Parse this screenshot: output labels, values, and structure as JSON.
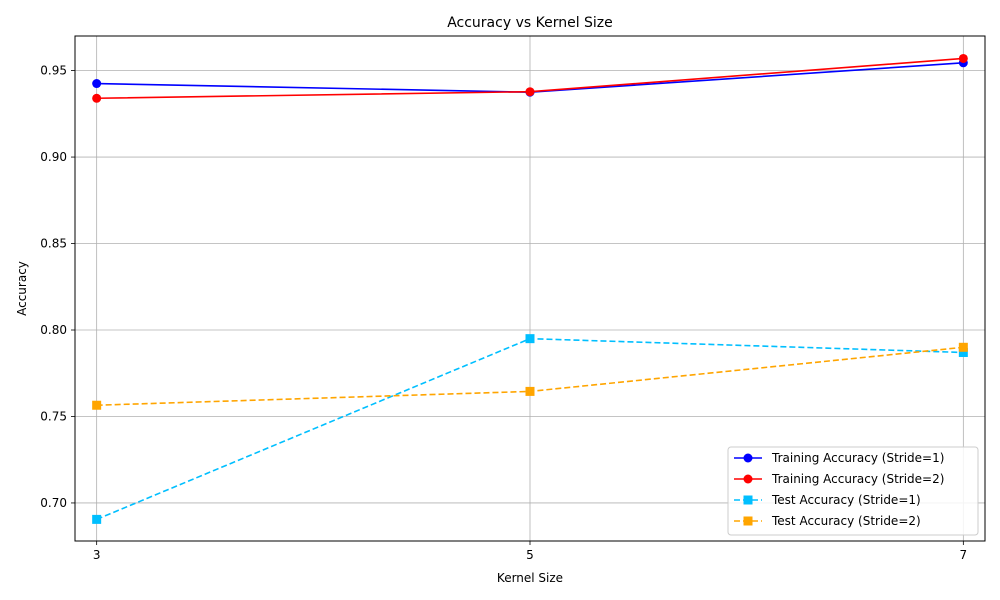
{
  "chart_data": {
    "type": "line",
    "title": "Accuracy vs Kernel Size",
    "xlabel": "Kernel Size",
    "ylabel": "Accuracy",
    "x": [
      3,
      5,
      7
    ],
    "xticks": [
      "3",
      "5",
      "7"
    ],
    "yticks": [
      "0.70",
      "0.75",
      "0.80",
      "0.85",
      "0.90",
      "0.95"
    ],
    "xlim": [
      2.9,
      7.1
    ],
    "ylim": [
      0.678,
      0.97
    ],
    "grid": true,
    "legend_position": "lower-right",
    "series": [
      {
        "name": "Training Accuracy (Stride=1)",
        "values": [
          0.9425,
          0.9375,
          0.9545
        ],
        "color": "#0000ff",
        "dash": "solid",
        "marker": "circle"
      },
      {
        "name": "Training Accuracy (Stride=2)",
        "values": [
          0.934,
          0.9378,
          0.957
        ],
        "color": "#ff0000",
        "dash": "solid",
        "marker": "circle"
      },
      {
        "name": "Test Accuracy (Stride=1)",
        "values": [
          0.6905,
          0.795,
          0.787
        ],
        "color": "#00bfff",
        "dash": "dashed",
        "marker": "square"
      },
      {
        "name": "Test Accuracy (Stride=2)",
        "values": [
          0.7565,
          0.7645,
          0.79
        ],
        "color": "#ffa500",
        "dash": "dashed",
        "marker": "square"
      }
    ]
  }
}
